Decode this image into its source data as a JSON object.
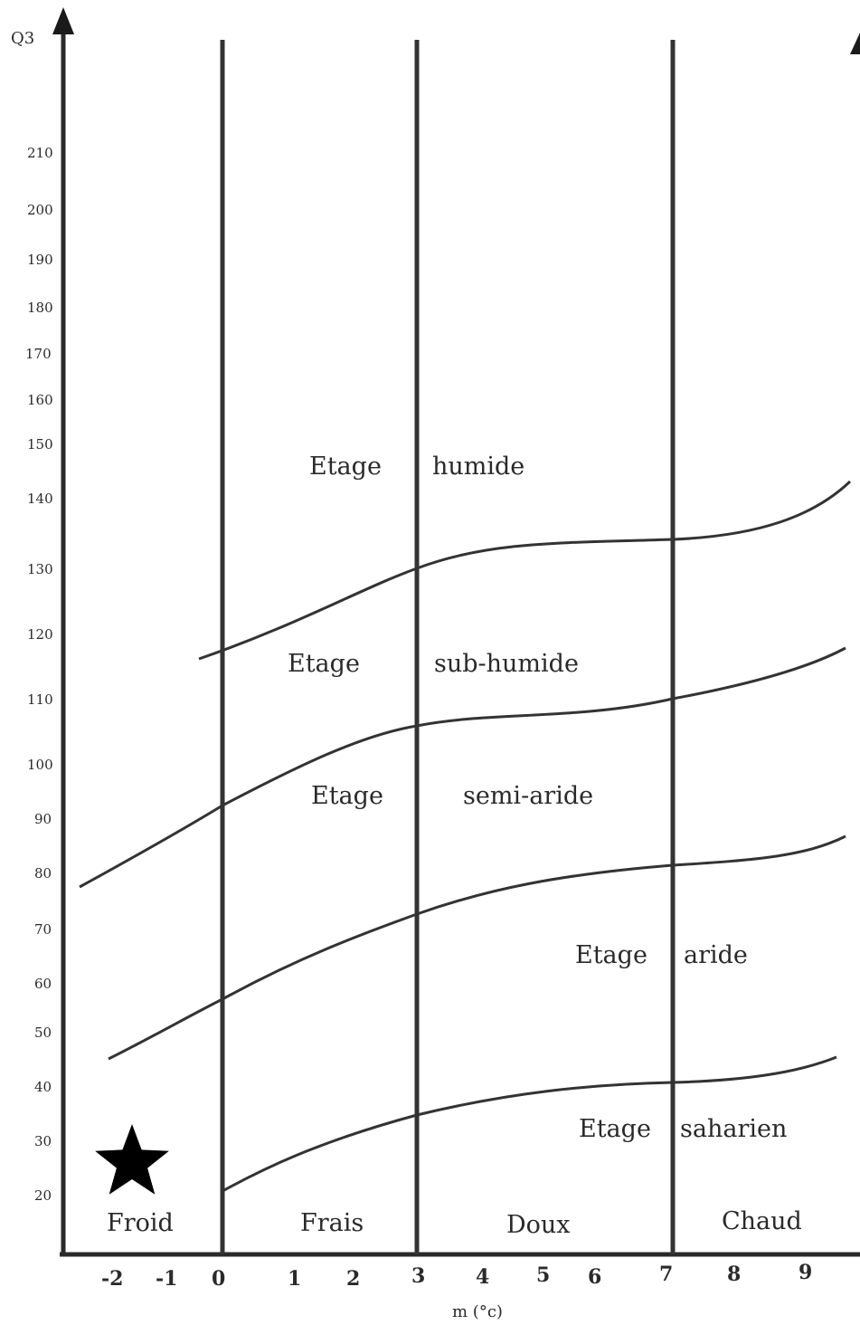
{
  "axis": {
    "y_title": "Q3",
    "x_title": "m (°c)",
    "y_ticks": [
      "210",
      "200",
      "190",
      "180",
      "170",
      "160",
      "150",
      "140",
      "130",
      "120",
      "110",
      "100",
      "90",
      "80",
      "70",
      "60",
      "50",
      "40",
      "30",
      "20"
    ],
    "x_ticks": [
      "-2",
      "-1",
      "0",
      "1",
      "2",
      "3",
      "4",
      "5",
      "6",
      "7",
      "8",
      "9"
    ]
  },
  "bands": {
    "humide": {
      "word1": "Etage",
      "word2": "humide"
    },
    "sub_humide": {
      "word1": "Etage",
      "word2": "sub-humide"
    },
    "semi_aride": {
      "word1": "Etage",
      "word2": "semi-aride"
    },
    "aride": {
      "word1": "Etage",
      "word2": "aride"
    },
    "saharien": {
      "word1": "Etage",
      "word2": "saharien"
    }
  },
  "winter_zones": [
    "Froid",
    "Frais",
    "Doux",
    "Chaud"
  ],
  "marker": {
    "icon": "star-icon",
    "color": "#000000"
  }
}
